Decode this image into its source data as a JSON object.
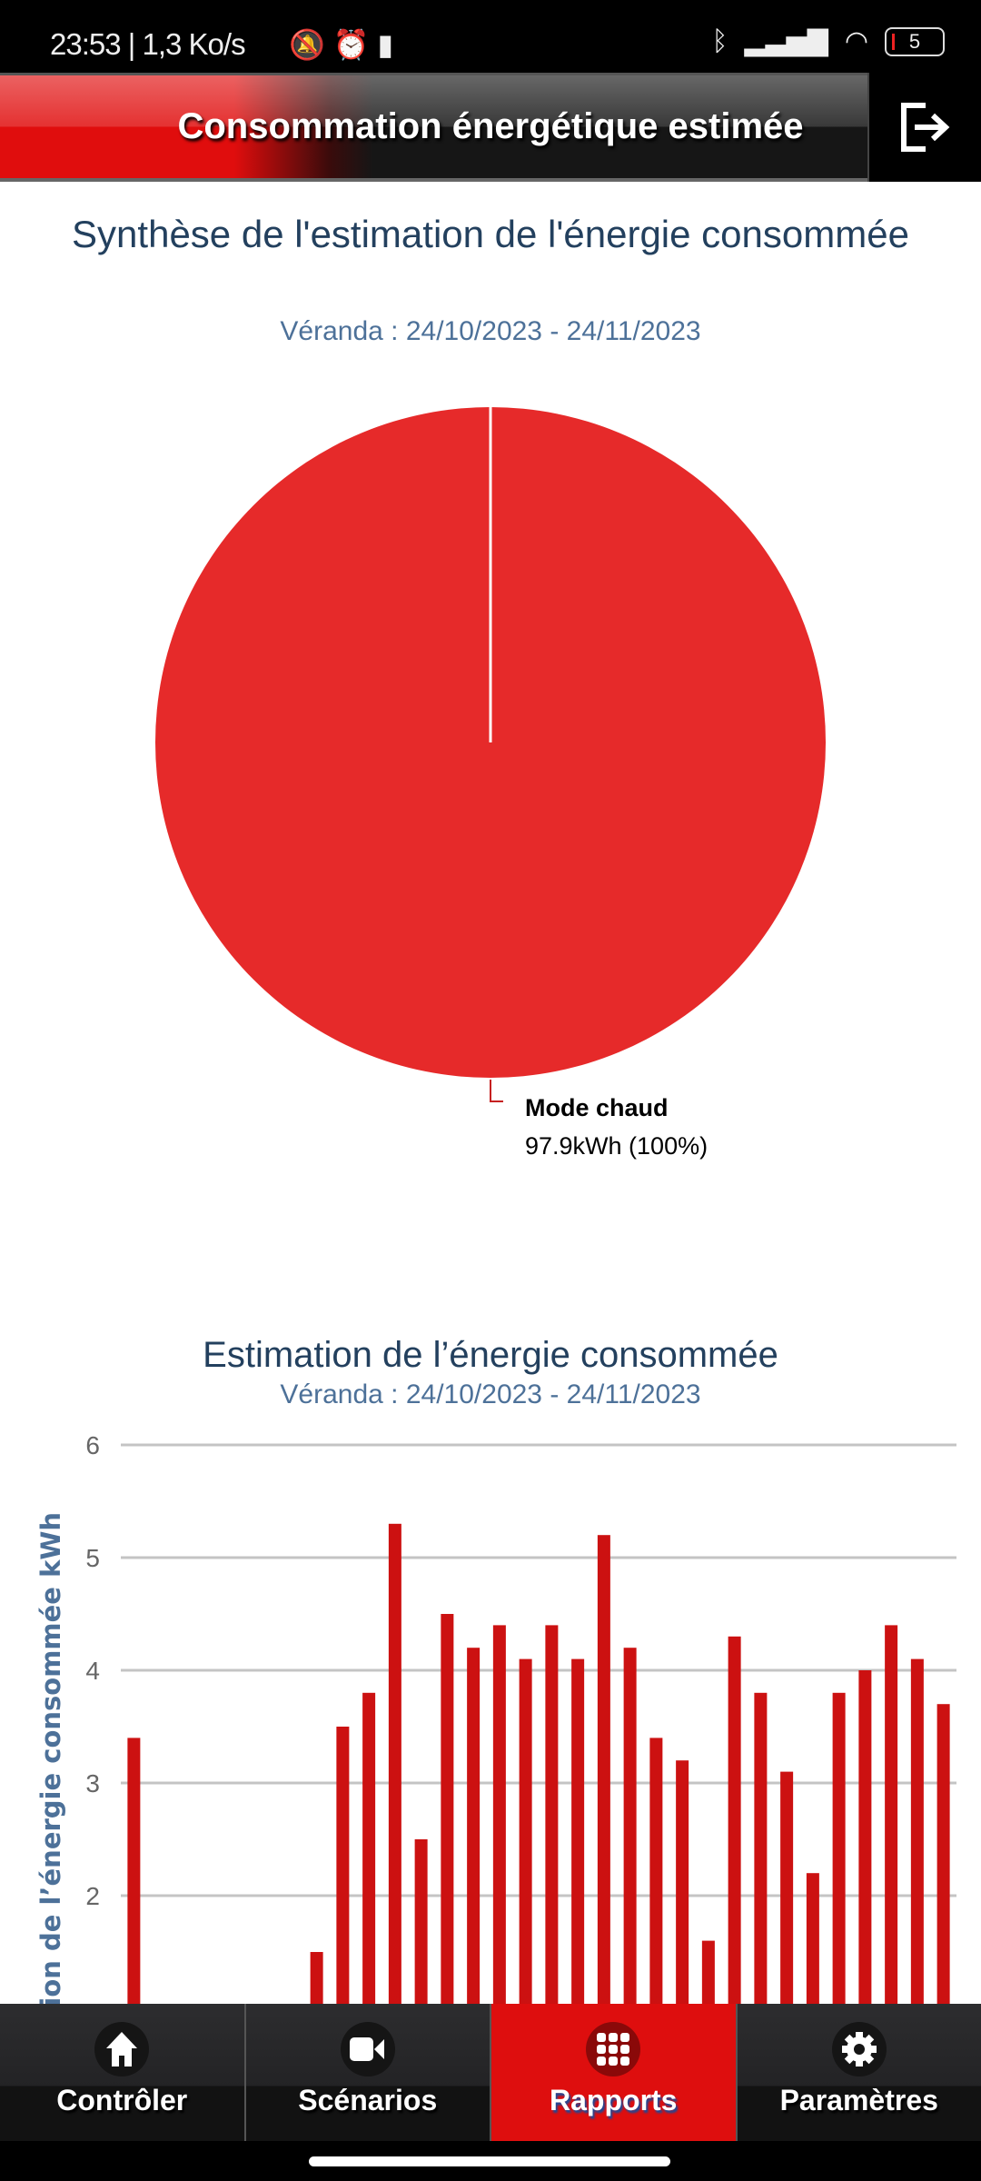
{
  "status_bar": {
    "time": "23:53",
    "speed": "| 1,3 Ko/s",
    "battery": "5"
  },
  "header": {
    "title": "Consommation énergétique estimée",
    "logout_icon": "logout-icon"
  },
  "colors": {
    "accent": "#de0e0e",
    "pie": "#e62a2a",
    "bar": "#cc1111",
    "title": "#23405e",
    "subtitle": "#4d7199"
  },
  "chart_data": [
    {
      "type": "pie",
      "title": "Synthèse de l'estimation de l'énergie consommée",
      "subtitle": "Véranda : 24/10/2023 - 24/11/2023",
      "slices": [
        {
          "name": "Mode chaud",
          "value": 97.9,
          "label": "97.9kWh (100%)"
        }
      ]
    },
    {
      "type": "bar",
      "title": "Estimation de l’énergie consommée",
      "subtitle": "Véranda : 24/10/2023 - 24/11/2023",
      "ylabel": "Estimation de l’énergie consommée kWh",
      "yticks": [
        "2",
        "3",
        "4",
        "5",
        "6"
      ],
      "ylim_visible": [
        1,
        6
      ],
      "grid": true,
      "values": [
        3.4,
        0,
        0,
        0,
        0,
        0,
        0,
        1.5,
        3.5,
        3.8,
        5.3,
        2.5,
        4.5,
        4.2,
        4.4,
        4.1,
        4.4,
        4.1,
        5.2,
        4.2,
        3.4,
        3.2,
        1.6,
        4.3,
        3.8,
        3.1,
        2.2,
        3.8,
        4.0,
        4.4,
        4.1,
        3.7
      ]
    }
  ],
  "nav": {
    "tabs": [
      {
        "label": "Contrôler",
        "icon": "home-icon"
      },
      {
        "label": "Scénarios",
        "icon": "video-camera-icon"
      },
      {
        "label": "Rapports",
        "icon": "grid-icon",
        "active": true
      },
      {
        "label": "Paramètres",
        "icon": "gear-icon"
      }
    ]
  }
}
